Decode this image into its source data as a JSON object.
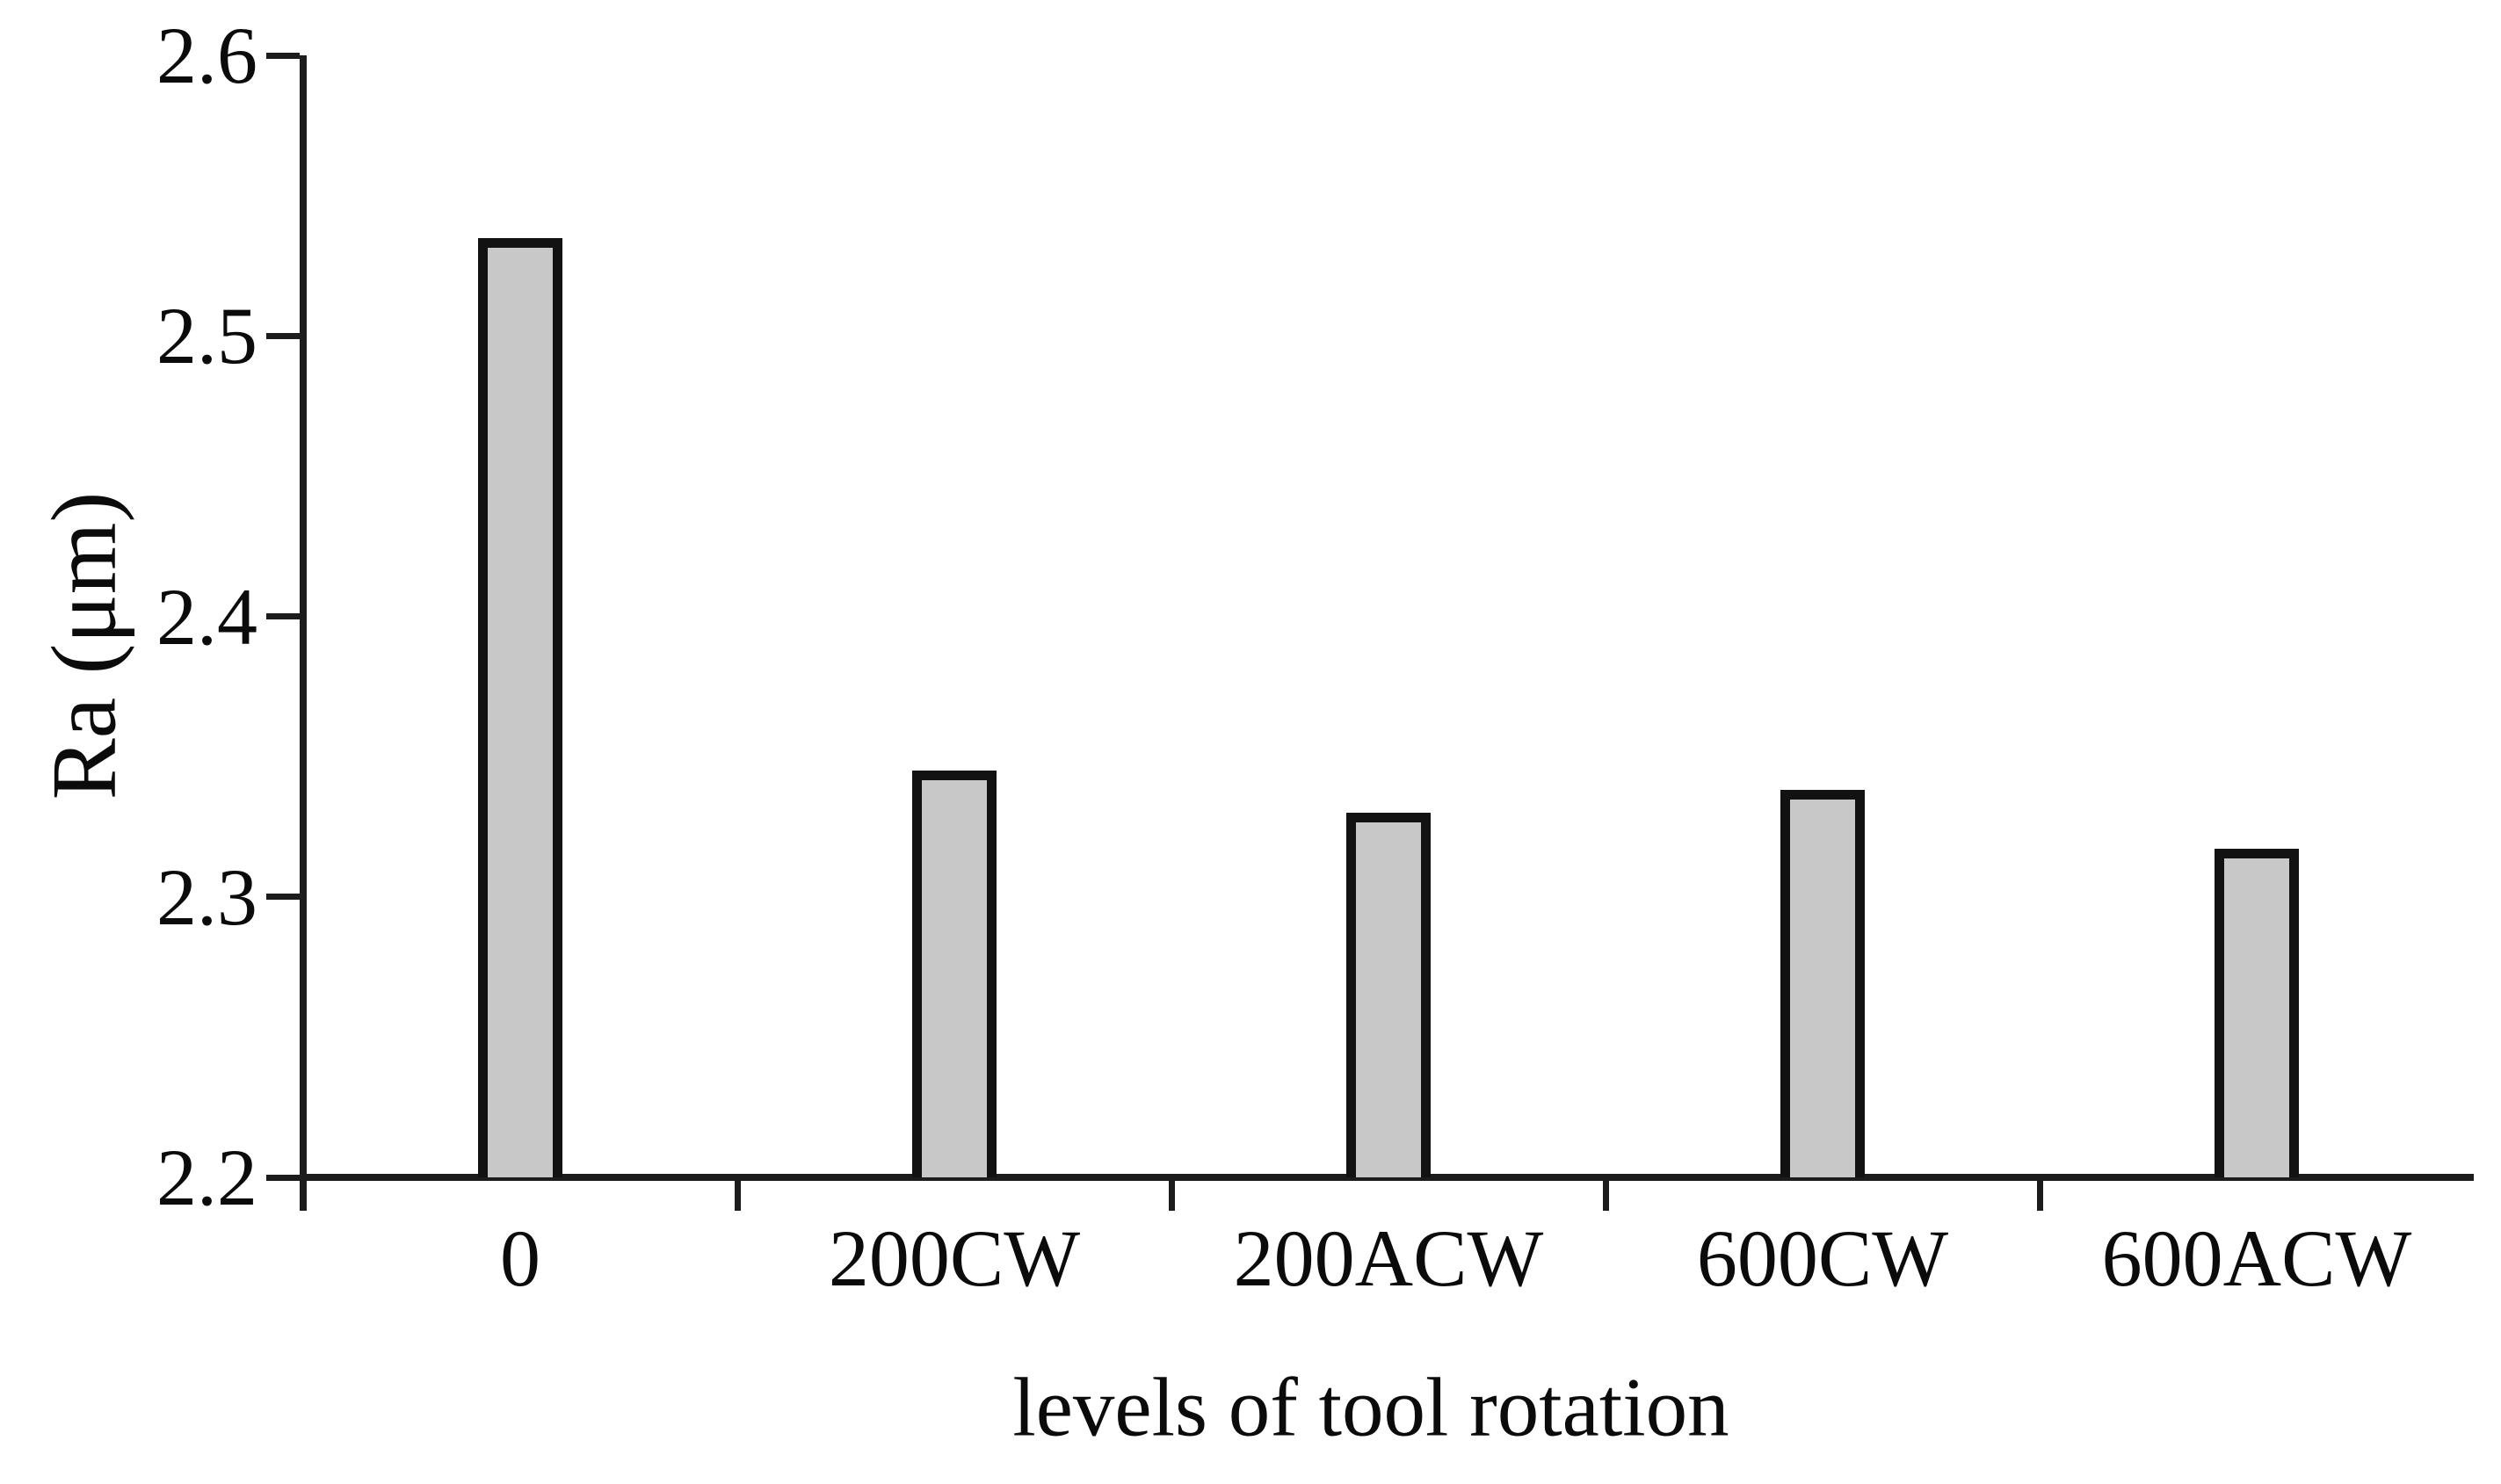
{
  "chart_data": {
    "type": "bar",
    "title": "",
    "categories": [
      "0",
      "200CW",
      "200ACW",
      "600CW",
      "600ACW"
    ],
    "values": [
      2.535,
      2.345,
      2.33,
      2.338,
      2.317
    ],
    "xlabel": "levels of tool rotation",
    "ylabel": "Ra (μm)",
    "ylim": [
      2.2,
      2.6
    ],
    "ytick_labels": [
      "2.6",
      "2.5",
      "2.4",
      "2.3",
      "2.2"
    ],
    "ytick_values": [
      2.6,
      2.5,
      2.4,
      2.3,
      2.2
    ],
    "grid": false,
    "legend": "none",
    "background_color": "#ffffff",
    "bar_fill_color": "#c8c8c8",
    "bar_border_color": "#121212",
    "axis_color": "#1c1c1c",
    "text_color": "#0b0b0b"
  }
}
